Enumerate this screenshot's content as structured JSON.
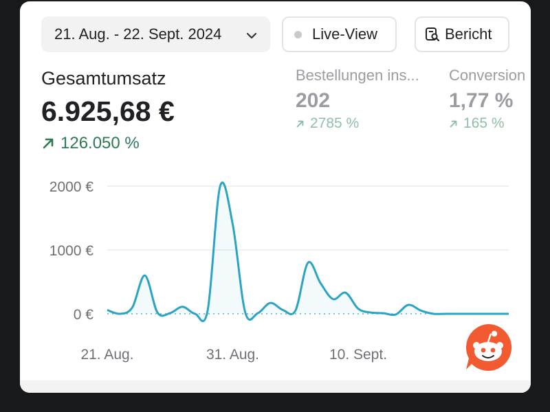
{
  "toolbar": {
    "date_range": "21. Aug. - 22. Sept. 2024",
    "live_view_label": "Live-View",
    "report_label": "Bericht"
  },
  "metrics": {
    "main": {
      "label": "Gesamtumsatz",
      "value": "6.925,68 €",
      "change": "126.050 %"
    },
    "orders": {
      "label": "Bestellungen ins...",
      "value": "202",
      "change": "2785 %"
    },
    "conversion": {
      "label": "Conversion",
      "value": "1,77 %",
      "change": "165 %"
    }
  },
  "colors": {
    "accent_line": "#2ba3c4",
    "positive": "#2c7a55",
    "positive_muted": "#8fbfa6",
    "muted_text": "#9a9ca1"
  },
  "chart_data": {
    "type": "area",
    "x": [
      "21. Aug.",
      "22. Aug.",
      "23. Aug.",
      "24. Aug.",
      "25. Aug.",
      "26. Aug.",
      "27. Aug.",
      "28. Aug.",
      "29. Aug.",
      "30. Aug.",
      "31. Aug.",
      "01. Sept.",
      "02. Sept.",
      "03. Sept.",
      "04. Sept.",
      "05. Sept.",
      "06. Sept.",
      "07. Sept.",
      "08. Sept.",
      "09. Sept.",
      "10. Sept.",
      "11. Sept.",
      "12. Sept.",
      "13. Sept.",
      "14. Sept.",
      "15. Sept.",
      "16. Sept.",
      "17. Sept.",
      "18. Sept.",
      "19. Sept.",
      "20. Sept.",
      "21. Sept.",
      "22. Sept."
    ],
    "series": [
      {
        "values": [
          60,
          0,
          100,
          600,
          20,
          10,
          110,
          0,
          50,
          2000,
          1400,
          20,
          10,
          170,
          60,
          50,
          800,
          480,
          230,
          330,
          80,
          20,
          10,
          -10,
          140,
          50,
          0,
          0,
          0,
          0,
          0,
          0,
          0
        ]
      }
    ],
    "ylim": [
      0,
      2000
    ],
    "yticks": [
      "2000 €",
      "1000 €",
      "0 €"
    ],
    "xticks": [
      "21. Aug.",
      "31. Aug.",
      "10. Sept."
    ],
    "grid": true
  },
  "chat": {
    "icon": "reddit-snoo-icon"
  }
}
